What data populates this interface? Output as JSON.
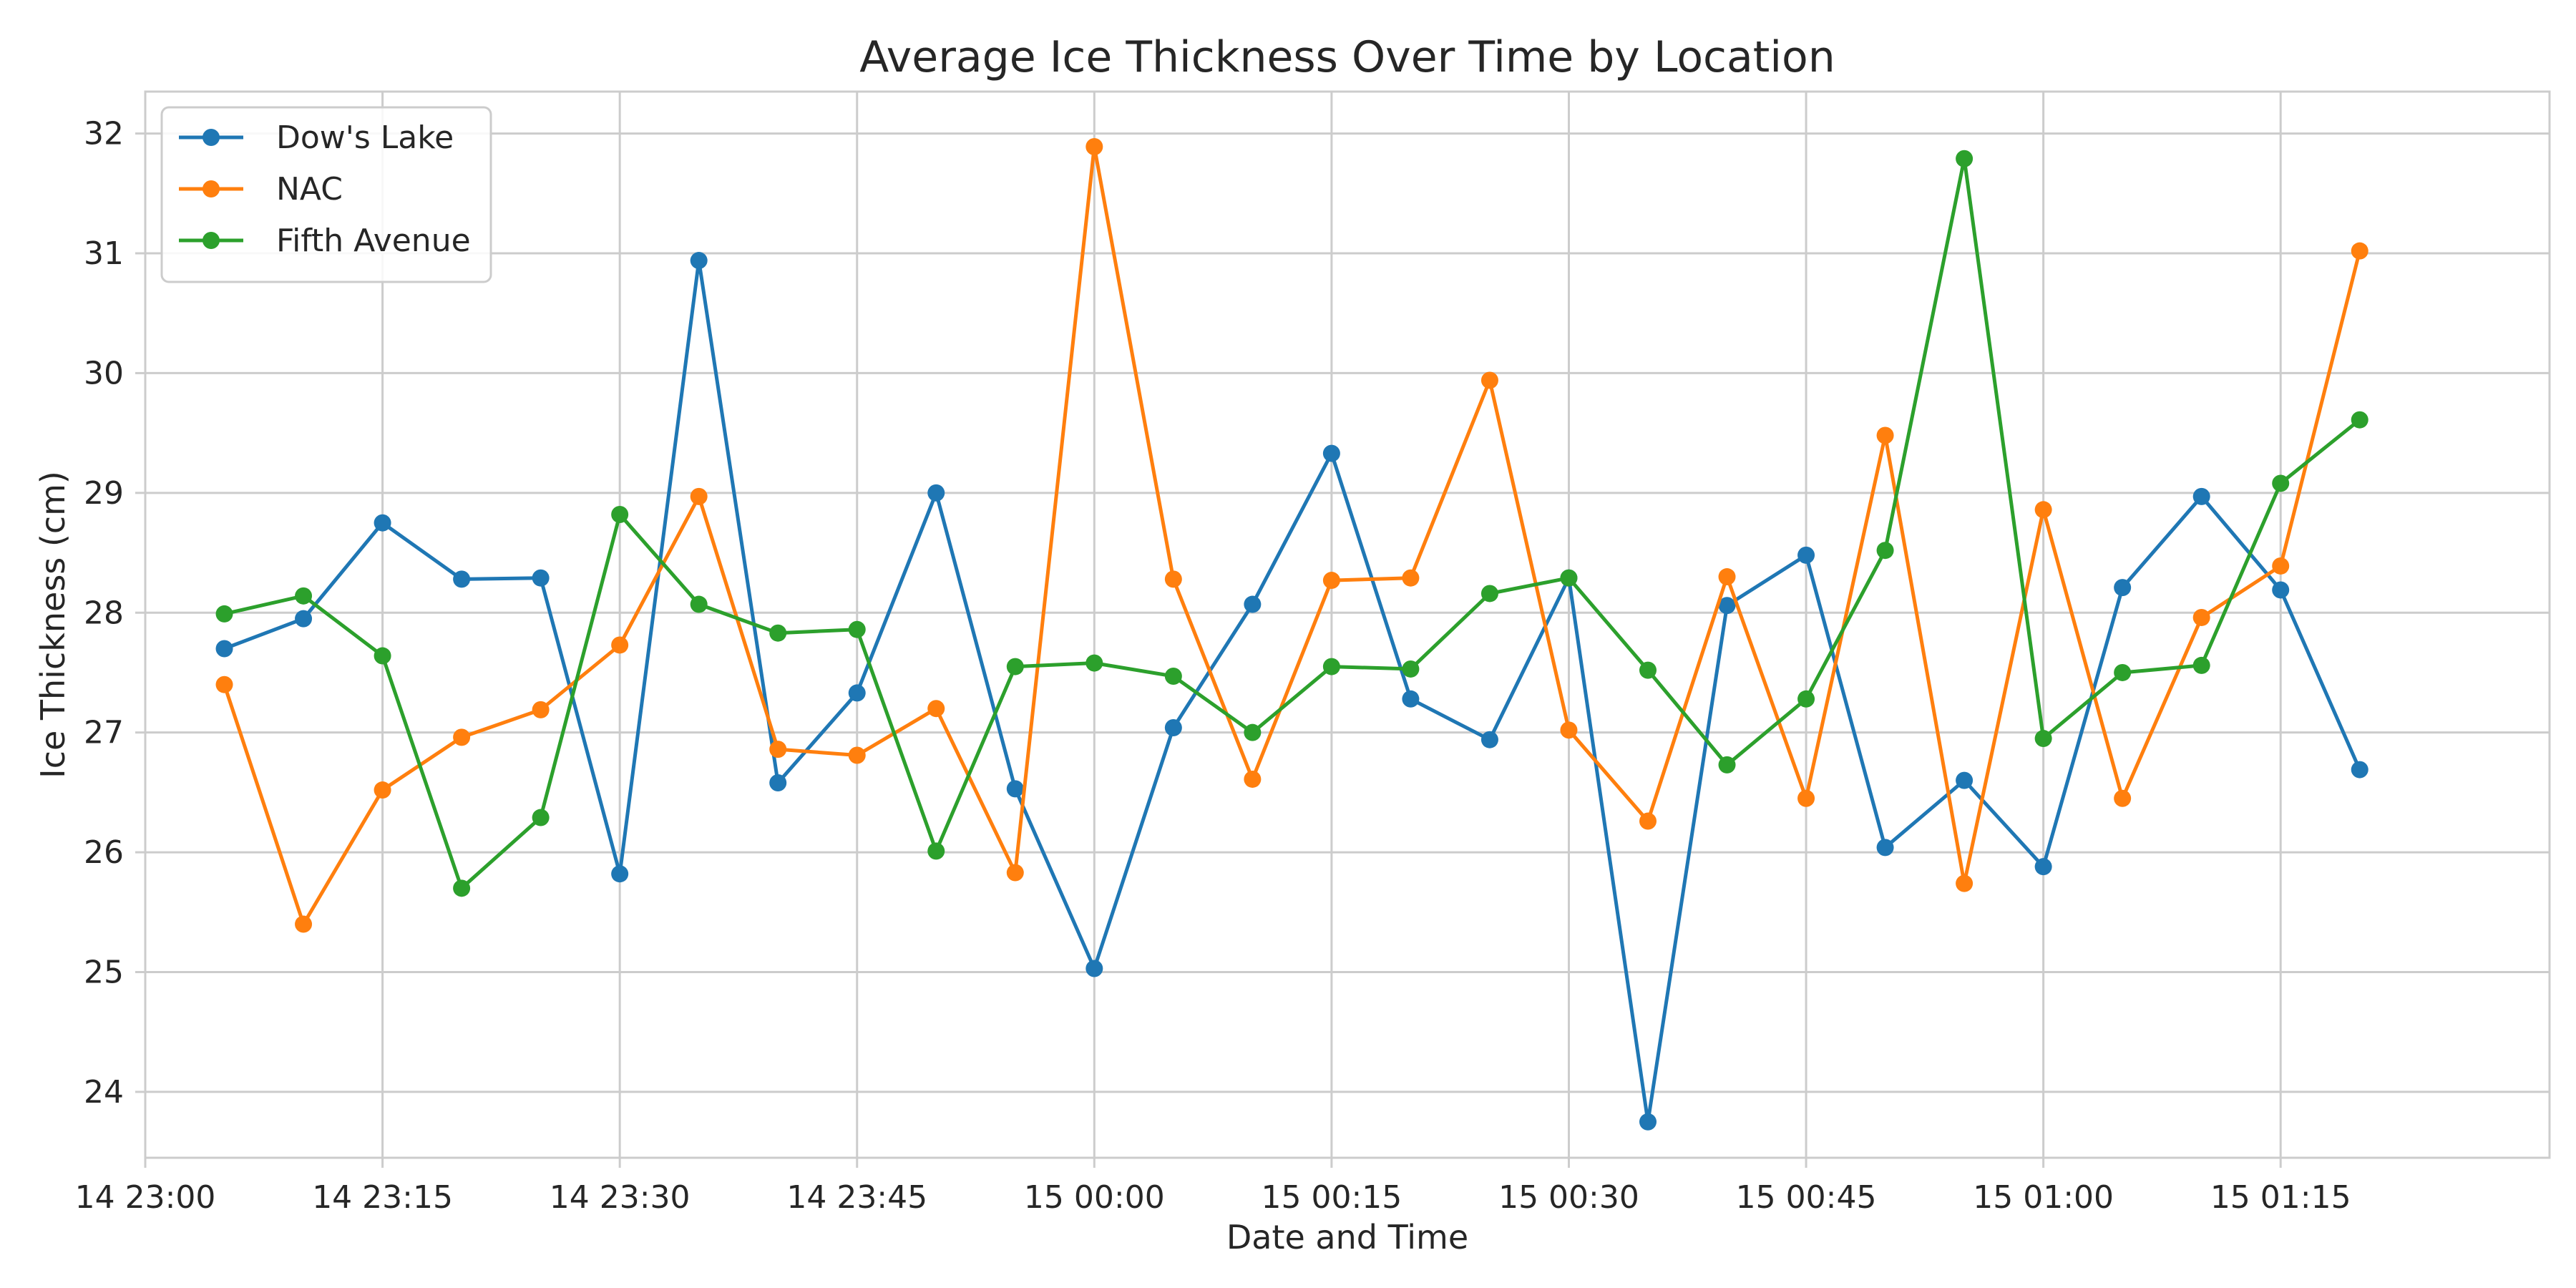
{
  "chart_data": {
    "type": "line",
    "title": "Average Ice Thickness Over Time by Location",
    "xlabel": "Date and Time",
    "ylabel": "Ice Thickness (cm)",
    "x": [
      "14 23:05",
      "14 23:10",
      "14 23:15",
      "14 23:20",
      "14 23:25",
      "14 23:30",
      "14 23:35",
      "14 23:40",
      "14 23:45",
      "14 23:50",
      "14 23:55",
      "15 00:00",
      "15 00:05",
      "15 00:10",
      "15 00:15",
      "15 00:20",
      "15 00:25",
      "15 00:30",
      "15 00:35",
      "15 00:40",
      "15 00:45",
      "15 00:50",
      "15 00:55",
      "15 01:00",
      "15 01:05",
      "15 01:10",
      "15 01:15",
      "15 01:20"
    ],
    "xticks": [
      "14 23:00",
      "14 23:15",
      "14 23:30",
      "14 23:45",
      "15 00:00",
      "15 00:15",
      "15 00:30",
      "15 00:45",
      "15 01:00",
      "15 01:15"
    ],
    "xlim": [
      "14 23:00",
      "15 01:32"
    ],
    "ylim": [
      23.45,
      32.35
    ],
    "yticks": [
      24,
      25,
      26,
      27,
      28,
      29,
      30,
      31,
      32
    ],
    "grid": true,
    "legend_position": "top-left",
    "marker": "circle",
    "series": [
      {
        "name": "Dow's Lake",
        "color": "#1f77b4",
        "values": [
          27.7,
          27.95,
          28.75,
          28.28,
          28.29,
          25.82,
          30.94,
          26.58,
          27.33,
          29.0,
          26.53,
          25.03,
          27.04,
          28.07,
          29.33,
          27.28,
          26.94,
          28.29,
          23.75,
          28.06,
          28.48,
          26.04,
          26.6,
          25.88,
          28.21,
          28.97,
          28.19,
          26.69
        ]
      },
      {
        "name": "NAC",
        "color": "#ff7f0e",
        "values": [
          27.4,
          25.4,
          26.52,
          26.96,
          27.19,
          27.73,
          28.97,
          26.86,
          26.81,
          27.2,
          25.83,
          31.89,
          28.28,
          26.61,
          28.27,
          28.29,
          29.94,
          27.02,
          26.26,
          28.3,
          26.45,
          29.48,
          25.74,
          28.86,
          26.45,
          27.96,
          28.39,
          31.02
        ]
      },
      {
        "name": "Fifth Avenue",
        "color": "#2ca02c",
        "values": [
          27.99,
          28.14,
          27.64,
          25.7,
          26.29,
          28.82,
          28.07,
          27.83,
          27.86,
          26.01,
          27.55,
          27.58,
          27.47,
          27.0,
          27.55,
          27.53,
          28.16,
          28.29,
          27.52,
          26.73,
          27.28,
          28.52,
          31.79,
          26.95,
          27.5,
          27.56,
          29.08,
          29.61
        ]
      }
    ]
  }
}
